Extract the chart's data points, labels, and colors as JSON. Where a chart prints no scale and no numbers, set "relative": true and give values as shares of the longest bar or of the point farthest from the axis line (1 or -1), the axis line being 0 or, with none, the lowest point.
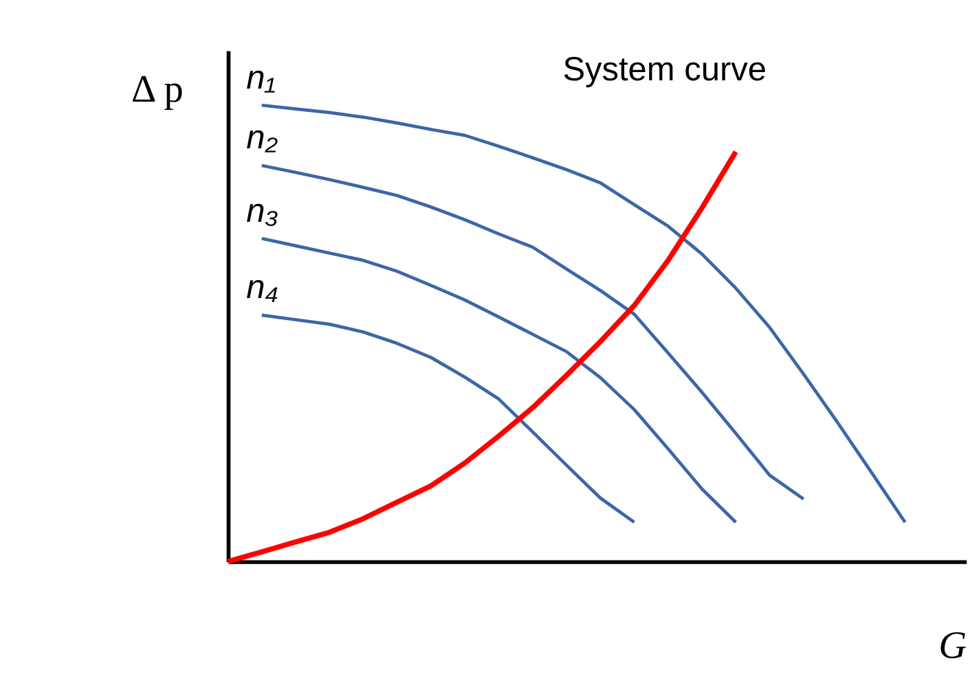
{
  "chart_data": {
    "type": "line",
    "relative": true,
    "xlabel": "G",
    "ylabel": "Δ p",
    "grid": false,
    "legend": false,
    "marker": "none",
    "line_style": "solid",
    "categories": [
      null,
      null,
      null,
      null,
      null,
      null,
      null,
      null,
      null,
      null,
      null,
      null,
      null,
      null,
      null,
      null,
      null,
      null,
      null,
      null,
      null
    ],
    "series": [
      {
        "name": "n₁",
        "color": "#3c66a6",
        "values": [
          null,
          1,
          0.992,
          0.984,
          0.974,
          0.961,
          0.947,
          0.934,
          0.91,
          0.885,
          0.859,
          0.83,
          0.782,
          0.735,
          0.674,
          0.599,
          0.513,
          0.411,
          0.305,
          0.196,
          0.086
        ]
      },
      {
        "name": "n₂",
        "color": "#3c66a6",
        "values": [
          null,
          0.868,
          0.853,
          0.837,
          0.82,
          0.802,
          0.777,
          0.749,
          0.718,
          0.689,
          0.641,
          0.594,
          0.542,
          0.457,
          0.371,
          0.281,
          0.189,
          0.137,
          null,
          null,
          null
        ]
      },
      {
        "name": "n₃",
        "color": "#3c66a6",
        "values": [
          null,
          0.708,
          0.692,
          0.676,
          0.66,
          0.636,
          0.605,
          0.573,
          0.536,
          0.498,
          0.46,
          0.403,
          0.333,
          0.247,
          0.159,
          0.086,
          null,
          null,
          null,
          null,
          null
        ]
      },
      {
        "name": "n₄",
        "color": "#3c66a6",
        "values": [
          null,
          0.54,
          0.53,
          0.52,
          0.503,
          0.478,
          0.447,
          0.404,
          0.356,
          0.284,
          0.211,
          0.139,
          0.086,
          null,
          null,
          null,
          null,
          null,
          null,
          null,
          null
        ]
      },
      {
        "name": "System curve",
        "color": "#ff0000",
        "values": [
          0,
          0.021,
          0.043,
          0.064,
          0.094,
          0.13,
          0.166,
          0.216,
          0.275,
          0.337,
          0.408,
          0.482,
          0.561,
          0.66,
          0.775,
          0.898,
          null,
          null,
          null,
          null,
          null
        ]
      }
    ]
  }
}
